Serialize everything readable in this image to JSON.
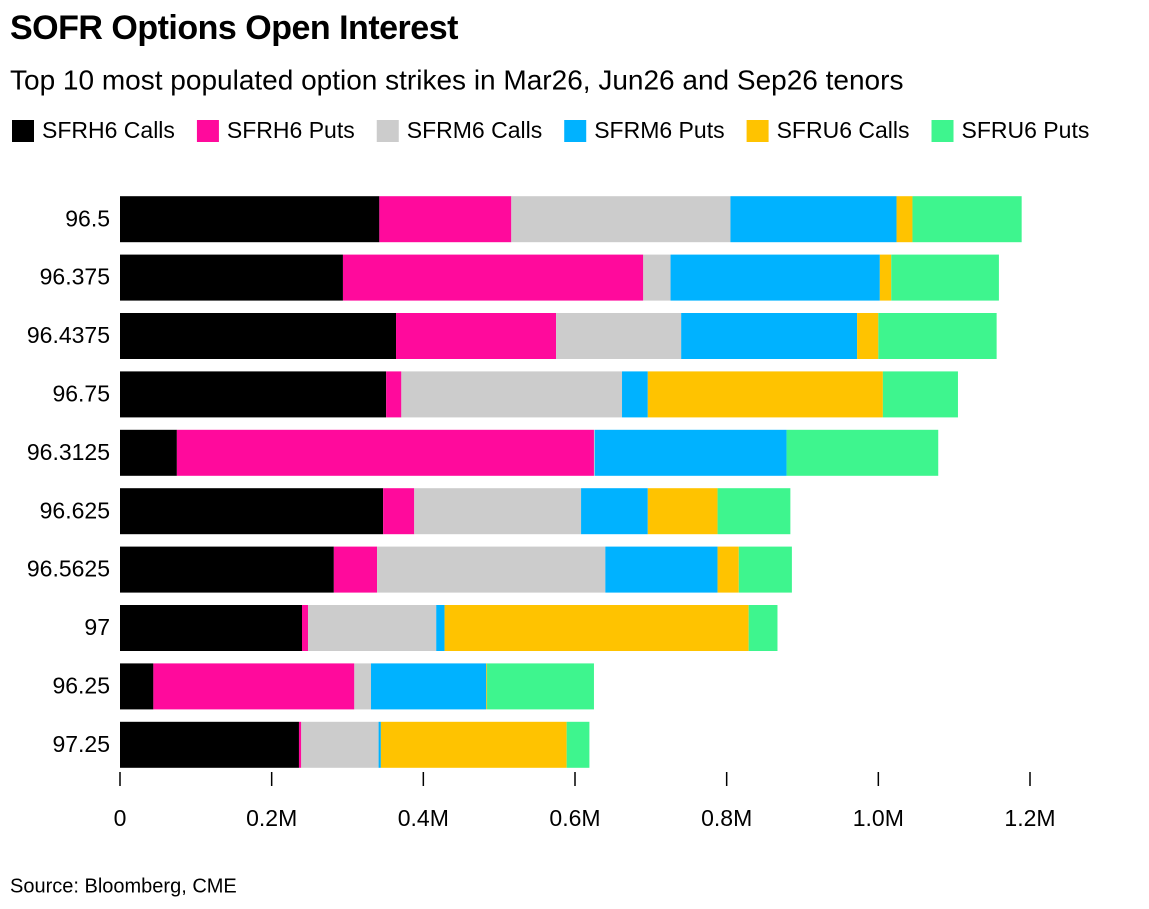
{
  "chart_data": {
    "type": "stacked-bar-horizontal",
    "title": "SOFR Options Open Interest",
    "subtitle": "Top 10 most populated option strikes in Mar26, Jun26 and Sep26 tenors",
    "source": "Source: Bloomberg, CME",
    "categories": [
      "96.5",
      "96.375",
      "96.4375",
      "96.75",
      "96.3125",
      "96.625",
      "96.5625",
      "97",
      "96.25",
      "97.25"
    ],
    "series": [
      {
        "name": "SFRH6 Calls",
        "color": "#000000",
        "values": [
          342000,
          294000,
          364000,
          351000,
          75000,
          347000,
          282000,
          240000,
          44000,
          236000
        ]
      },
      {
        "name": "SFRH6 Puts",
        "color": "#ff0a9c",
        "values": [
          174000,
          396000,
          211000,
          20000,
          550000,
          41000,
          57000,
          8000,
          265000,
          3000
        ]
      },
      {
        "name": "SFRM6 Calls",
        "color": "#cccccc",
        "values": [
          289000,
          36000,
          165000,
          291000,
          1000,
          220000,
          301000,
          169000,
          22000,
          102000
        ]
      },
      {
        "name": "SFRM6 Puts",
        "color": "#00b2ff",
        "values": [
          219000,
          276000,
          232000,
          34000,
          253000,
          88000,
          148000,
          11000,
          152000,
          3000
        ]
      },
      {
        "name": "SFRU6 Calls",
        "color": "#ffc300",
        "values": [
          21000,
          15000,
          28000,
          310000,
          0,
          92000,
          28000,
          401000,
          1000,
          245000
        ]
      },
      {
        "name": "SFRU6 Puts",
        "color": "#3ef58e",
        "values": [
          144000,
          142000,
          156000,
          99000,
          200000,
          96000,
          70000,
          38000,
          141000,
          30000
        ]
      }
    ],
    "xlim": [
      0,
      1200000
    ],
    "xticks": [
      0,
      {
        "value": 200000,
        "label": "0.2M"
      },
      {
        "value": 400000,
        "label": "0.4M"
      },
      {
        "value": 600000,
        "label": "0.6M"
      },
      {
        "value": 800000,
        "label": "0.8M"
      },
      {
        "value": 1000000,
        "label": "1.0M"
      },
      {
        "value": 1200000,
        "label": "1.2M"
      }
    ]
  }
}
